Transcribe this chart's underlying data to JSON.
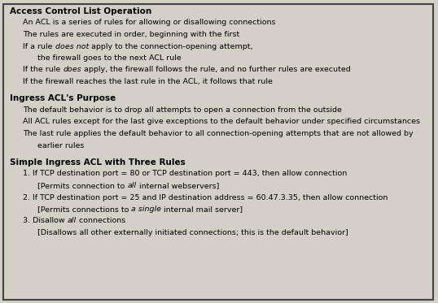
{
  "bg_color": "#d4d0c8",
  "border_color": "#444444",
  "text_color": "#000000",
  "figsize": [
    5.38,
    3.73
  ],
  "dpi": 100,
  "sections": [
    {
      "header": "Access Control List Operation",
      "lines": [
        {
          "segments": [
            [
              "An ACL is a series of rules for allowing or disallowing connections",
              "normal"
            ]
          ],
          "indent": 1
        },
        {
          "segments": [
            [
              "The rules are executed in order, beginning with the first",
              "normal"
            ]
          ],
          "indent": 1
        },
        {
          "segments": [
            [
              "If a rule ",
              "normal"
            ],
            [
              "does not",
              "italic"
            ],
            [
              " apply to the connection-opening attempt,",
              "normal"
            ]
          ],
          "indent": 1
        },
        {
          "segments": [
            [
              "the firewall goes to the next ACL rule",
              "normal"
            ]
          ],
          "indent": 2
        },
        {
          "segments": [
            [
              "If the rule ",
              "normal"
            ],
            [
              "does",
              "italic"
            ],
            [
              " apply, the firewall follows the rule, and no further rules are executed",
              "normal"
            ]
          ],
          "indent": 1
        },
        {
          "segments": [
            [
              "If the firewall reaches the last rule in the ACL, it follows that rule",
              "normal"
            ]
          ],
          "indent": 1
        }
      ]
    },
    {
      "header": "Ingress ACL's Purpose",
      "lines": [
        {
          "segments": [
            [
              "The default behavior is to drop all attempts to open a connection from the outside",
              "normal"
            ]
          ],
          "indent": 1
        },
        {
          "segments": [
            [
              "All ACL rules except for the last give exceptions to the default behavior under specified circumstances",
              "normal"
            ]
          ],
          "indent": 1
        },
        {
          "segments": [
            [
              "The last rule applies the default behavior to all connection-opening attempts that are not allowed by",
              "normal"
            ]
          ],
          "indent": 1
        },
        {
          "segments": [
            [
              "earlier rules",
              "normal"
            ]
          ],
          "indent": 2
        }
      ]
    },
    {
      "header": "Simple Ingress ACL with Three Rules",
      "lines": [
        {
          "segments": [
            [
              "1. If TCP destination port = 80 or TCP destination port = 443, then allow connection",
              "normal"
            ]
          ],
          "indent": 1
        },
        {
          "segments": [
            [
              "[Permits connection to ",
              "normal"
            ],
            [
              "all",
              "italic"
            ],
            [
              " internal webservers]",
              "normal"
            ]
          ],
          "indent": 2
        },
        {
          "segments": [
            [
              "2. If TCP destination port = 25 and IP destination address = 60.47.3.35, then allow connection",
              "normal"
            ]
          ],
          "indent": 1
        },
        {
          "segments": [
            [
              "[Permits connections to ",
              "normal"
            ],
            [
              "a single",
              "italic"
            ],
            [
              " internal mail server]",
              "normal"
            ]
          ],
          "indent": 2
        },
        {
          "segments": [
            [
              "3. Disallow ",
              "normal"
            ],
            [
              "all",
              "italic"
            ],
            [
              " connections",
              "normal"
            ]
          ],
          "indent": 1
        },
        {
          "segments": [
            [
              "[Disallows all other externally initiated connections; this is the default behavior]",
              "normal"
            ]
          ],
          "indent": 2
        }
      ]
    }
  ]
}
